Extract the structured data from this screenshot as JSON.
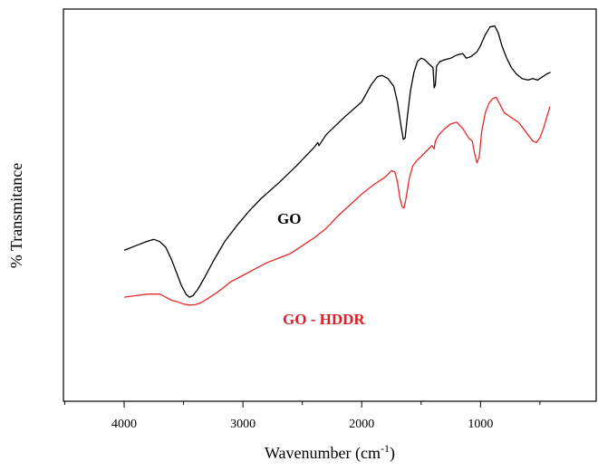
{
  "chart_data": {
    "type": "line",
    "xlabel": "Wavenumber (cm",
    "xlabel_sup": "-1",
    "xlabel_suffix": ")",
    "ylabel": "% Transmitance",
    "xlim": [
      4500,
      0
    ],
    "x_reversed": true,
    "ylim": [
      0,
      100
    ],
    "grid": false,
    "x_ticks": [
      4000,
      3000,
      2000,
      1000
    ],
    "x_tick_labels": [
      "4000",
      "3000",
      "2000",
      "1000"
    ],
    "series": [
      {
        "name": "GO",
        "color": "#000000",
        "label_color": "#000000",
        "points": [
          [
            4000,
            28
          ],
          [
            3900,
            29.5
          ],
          [
            3800,
            31
          ],
          [
            3750,
            31.5
          ],
          [
            3700,
            30.8
          ],
          [
            3650,
            29
          ],
          [
            3600,
            25
          ],
          [
            3560,
            21
          ],
          [
            3520,
            17
          ],
          [
            3480,
            14
          ],
          [
            3450,
            13
          ],
          [
            3420,
            13.5
          ],
          [
            3380,
            15.5
          ],
          [
            3320,
            19.5
          ],
          [
            3250,
            24.5
          ],
          [
            3150,
            31
          ],
          [
            3050,
            36
          ],
          [
            2950,
            40.5
          ],
          [
            2850,
            44.5
          ],
          [
            2700,
            49.5
          ],
          [
            2550,
            55
          ],
          [
            2400,
            61
          ],
          [
            2370,
            62.5
          ],
          [
            2360,
            61.5
          ],
          [
            2300,
            65
          ],
          [
            2150,
            70.5
          ],
          [
            2000,
            75.5
          ],
          [
            1920,
            81
          ],
          [
            1870,
            83.5
          ],
          [
            1830,
            84
          ],
          [
            1780,
            83
          ],
          [
            1730,
            80.5
          ],
          [
            1700,
            75.5
          ],
          [
            1670,
            68
          ],
          [
            1650,
            63.5
          ],
          [
            1635,
            64
          ],
          [
            1615,
            71
          ],
          [
            1590,
            79
          ],
          [
            1560,
            85
          ],
          [
            1530,
            88.5
          ],
          [
            1500,
            89.5
          ],
          [
            1470,
            89
          ],
          [
            1430,
            87.5
          ],
          [
            1400,
            86.5
          ],
          [
            1390,
            80
          ],
          [
            1380,
            81
          ],
          [
            1370,
            87
          ],
          [
            1340,
            88.5
          ],
          [
            1300,
            89
          ],
          [
            1250,
            89.5
          ],
          [
            1200,
            90.5
          ],
          [
            1150,
            91
          ],
          [
            1120,
            89.5
          ],
          [
            1080,
            90
          ],
          [
            1030,
            91.5
          ],
          [
            1000,
            93.5
          ],
          [
            960,
            97
          ],
          [
            920,
            99.5
          ],
          [
            880,
            99.8
          ],
          [
            850,
            97.5
          ],
          [
            820,
            93.5
          ],
          [
            780,
            89.5
          ],
          [
            740,
            86.5
          ],
          [
            700,
            84.5
          ],
          [
            650,
            83
          ],
          [
            600,
            82.5
          ],
          [
            560,
            83
          ],
          [
            520,
            82.5
          ],
          [
            480,
            83.5
          ],
          [
            440,
            84.5
          ],
          [
            410,
            85
          ]
        ]
      },
      {
        "name": "GO - HDDR",
        "color": "#e5282a",
        "label_color": "#dc1f26",
        "points": [
          [
            4000,
            13
          ],
          [
            3900,
            13.5
          ],
          [
            3800,
            14
          ],
          [
            3700,
            14
          ],
          [
            3650,
            13
          ],
          [
            3600,
            12
          ],
          [
            3550,
            11.5
          ],
          [
            3500,
            10.8
          ],
          [
            3450,
            10.5
          ],
          [
            3400,
            10.6
          ],
          [
            3350,
            11.3
          ],
          [
            3300,
            12.5
          ],
          [
            3200,
            15
          ],
          [
            3100,
            18
          ],
          [
            3000,
            20
          ],
          [
            2900,
            22
          ],
          [
            2800,
            24
          ],
          [
            2700,
            25.5
          ],
          [
            2600,
            27
          ],
          [
            2500,
            29.5
          ],
          [
            2400,
            32
          ],
          [
            2300,
            35
          ],
          [
            2200,
            39
          ],
          [
            2100,
            42.5
          ],
          [
            2000,
            46
          ],
          [
            1900,
            49
          ],
          [
            1800,
            51.5
          ],
          [
            1750,
            53.5
          ],
          [
            1720,
            53
          ],
          [
            1700,
            50
          ],
          [
            1680,
            45
          ],
          [
            1660,
            42
          ],
          [
            1645,
            41.5
          ],
          [
            1630,
            44
          ],
          [
            1600,
            51
          ],
          [
            1570,
            55
          ],
          [
            1530,
            57
          ],
          [
            1500,
            58
          ],
          [
            1450,
            60
          ],
          [
            1410,
            61.5
          ],
          [
            1390,
            60.5
          ],
          [
            1380,
            63
          ],
          [
            1350,
            65
          ],
          [
            1300,
            67
          ],
          [
            1250,
            68.5
          ],
          [
            1200,
            69
          ],
          [
            1150,
            67
          ],
          [
            1100,
            64
          ],
          [
            1070,
            63
          ],
          [
            1050,
            59
          ],
          [
            1030,
            56
          ],
          [
            1010,
            58
          ],
          [
            990,
            66
          ],
          [
            960,
            72
          ],
          [
            930,
            75
          ],
          [
            900,
            76.5
          ],
          [
            870,
            77
          ],
          [
            840,
            75
          ],
          [
            800,
            72
          ],
          [
            760,
            71
          ],
          [
            720,
            70
          ],
          [
            680,
            69
          ],
          [
            640,
            67
          ],
          [
            600,
            65
          ],
          [
            560,
            63
          ],
          [
            530,
            62.5
          ],
          [
            500,
            64
          ],
          [
            470,
            67
          ],
          [
            440,
            71
          ],
          [
            415,
            74
          ]
        ]
      }
    ]
  }
}
